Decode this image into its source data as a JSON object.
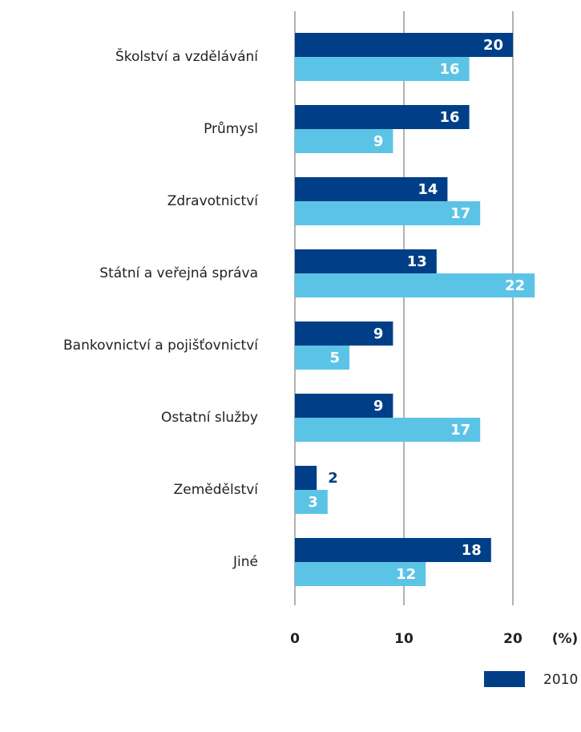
{
  "chart_data": {
    "type": "bar",
    "orientation": "horizontal",
    "categories": [
      "Školství a vzdělávání",
      "Průmysl",
      "Zdravotnictví",
      "Státní a veřejná správa",
      "Bankovnictví a pojišťovnictví",
      "Ostatní služby",
      "Zemědělství",
      "Jiné"
    ],
    "series": [
      {
        "name": "2010",
        "color": "#003f87",
        "values": [
          20,
          16,
          14,
          13,
          9,
          9,
          2,
          18
        ]
      },
      {
        "color": "#5bc4e6",
        "values": [
          16,
          9,
          17,
          22,
          5,
          17,
          3,
          12
        ]
      }
    ],
    "xlim": [
      0,
      26
    ],
    "xticks": [
      0,
      10,
      20
    ],
    "x_unit": "(%)",
    "grid": true,
    "legend": "bottom-right"
  }
}
